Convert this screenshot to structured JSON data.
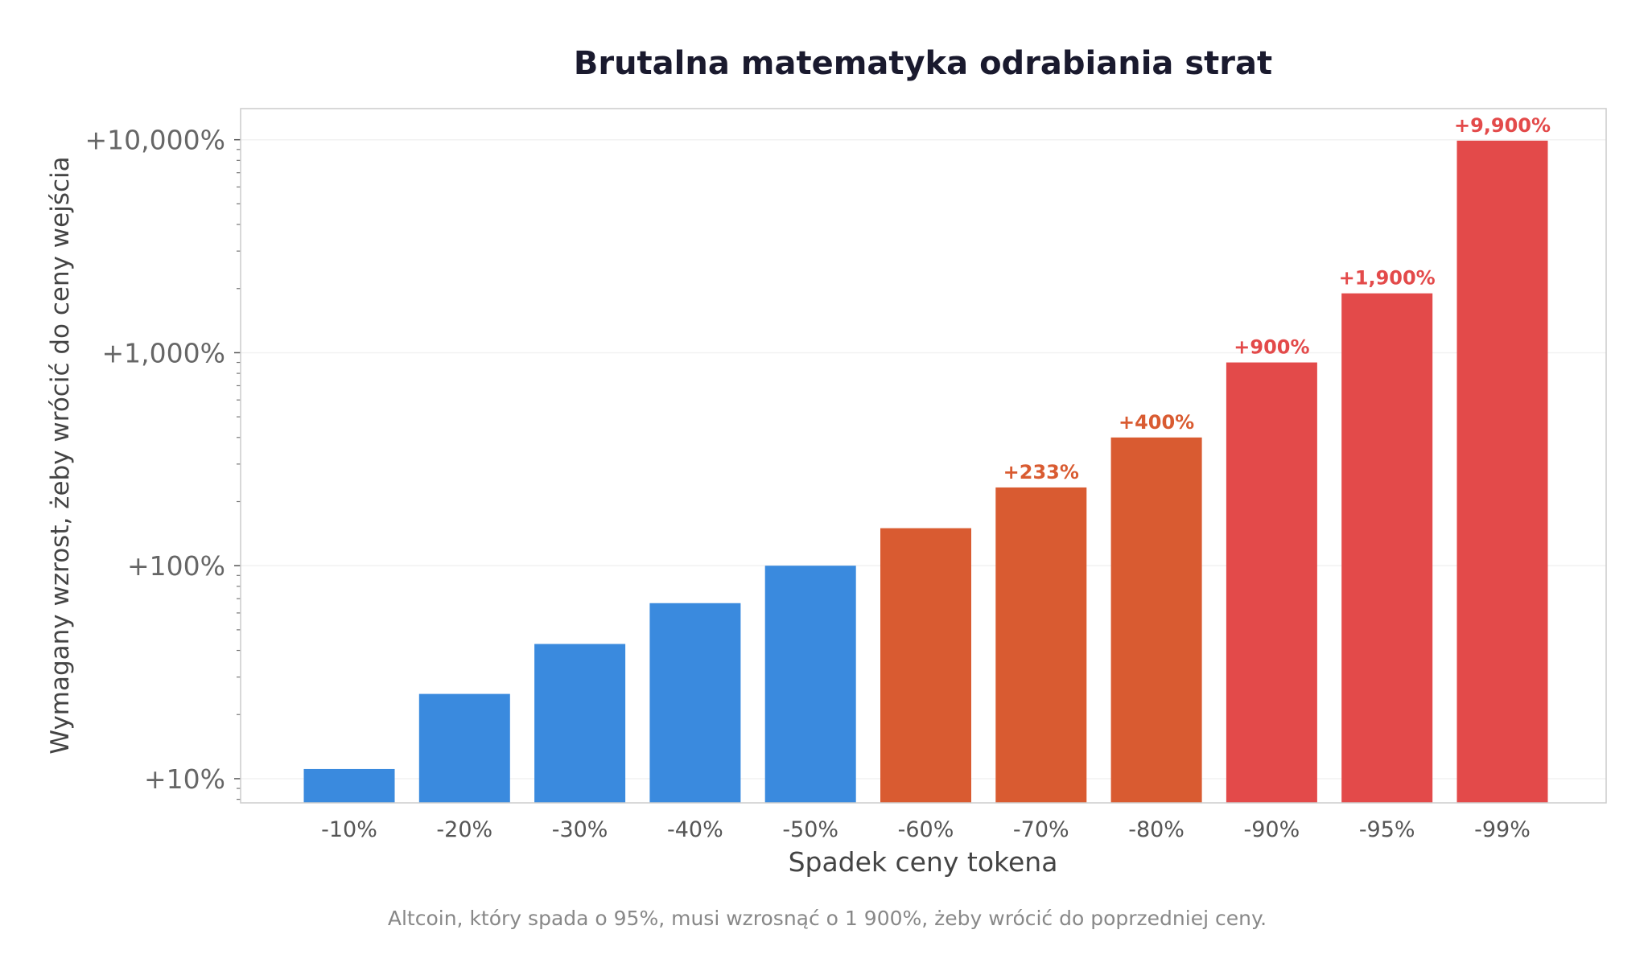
{
  "chart_data": {
    "type": "bar",
    "title": "Brutalna matematyka odrabiania strat",
    "xlabel": "Spadek ceny tokena",
    "ylabel": "Wymagany wzrost, żeby wrócić do ceny wejścia",
    "yscale": "log",
    "ylim": [
      7.7,
      14000
    ],
    "yticks": [
      10,
      100,
      1000,
      10000
    ],
    "ytick_labels": [
      "+10%",
      "+100%",
      "+1,000%",
      "+10,000%"
    ],
    "grid": true,
    "categories": [
      "-10%",
      "-20%",
      "-30%",
      "-40%",
      "-50%",
      "-60%",
      "-70%",
      "-80%",
      "-90%",
      "-95%",
      "-99%"
    ],
    "values": [
      11.1,
      25,
      42.9,
      66.7,
      100,
      150,
      233,
      400,
      900,
      1900,
      9900
    ],
    "colors": [
      "#3a8ade",
      "#3a8ade",
      "#3a8ade",
      "#3a8ade",
      "#3a8ade",
      "#d95b31",
      "#d95b31",
      "#d95b31",
      "#e34a4a",
      "#e34a4a",
      "#e34a4a"
    ],
    "data_labels": [
      "",
      "",
      "",
      "",
      "",
      "",
      "+233%",
      "+400%",
      "+900%",
      "+1,900%",
      "+9,900%"
    ],
    "caption": "Altcoin, który spada o 95%, musi wzrosnąć o 1 900%, żeby wrócić do poprzedniej ceny."
  }
}
